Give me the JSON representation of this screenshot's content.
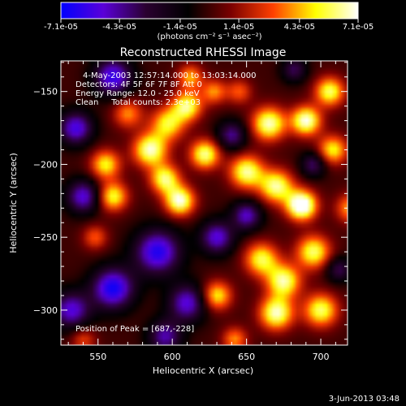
{
  "chart_data": {
    "type": "heatmap",
    "title": "Reconstructed RHESSI Image",
    "xlabel": "Heliocentric X (arcsec)",
    "ylabel": "Heliocentric Y (arcsec)",
    "xlim": [
      525,
      718
    ],
    "ylim": [
      -324,
      -129
    ],
    "x_ticks": [
      550,
      600,
      650,
      700
    ],
    "y_ticks": [
      -150,
      -200,
      -250,
      -300
    ],
    "colorbar": {
      "range": [
        -7.1e-05,
        7.1e-05
      ],
      "tick_values": [
        -7.1e-05,
        -4.3e-05,
        -1.4e-05,
        1.4e-05,
        4.3e-05,
        7.1e-05
      ],
      "tick_labels": [
        "-7.1e-05",
        "-4.3e-05",
        "-1.4e-05",
        "1.4e-05",
        "4.3e-05",
        "7.1e-05"
      ],
      "unit": "(photons cm⁻² s⁻¹ asec⁻²)",
      "colormap": [
        "#0000ff",
        "#5a00d8",
        "#2a0030",
        "#000000",
        "#7a0000",
        "#ff4000",
        "#ffff00",
        "#ffffff"
      ]
    },
    "annotations": [
      "4-May-2003 12:57:14.000 to 13:03:14.000",
      "Detectors: 4F 5F 6F 7F 8F  Att 0",
      "Energy Range: 12.0 - 25.0 keV",
      "Clean     Total counts: 2.3e+03",
      "Position of Peak = [687,-228]"
    ],
    "peak": {
      "x": 687,
      "y": -228
    },
    "date_stamp": "3-Jun-2013 03:48",
    "sources": [
      {
        "x": 555,
        "y": -200,
        "amp": 0.75,
        "s": 7
      },
      {
        "x": 560,
        "y": -222,
        "amp": 0.8,
        "s": 7
      },
      {
        "x": 548,
        "y": -250,
        "amp": 0.45,
        "s": 6
      },
      {
        "x": 570,
        "y": -165,
        "amp": 0.55,
        "s": 7
      },
      {
        "x": 585,
        "y": -190,
        "amp": 0.95,
        "s": 8
      },
      {
        "x": 597,
        "y": -172,
        "amp": 0.75,
        "s": 8
      },
      {
        "x": 595,
        "y": -210,
        "amp": 0.85,
        "s": 7
      },
      {
        "x": 605,
        "y": -225,
        "amp": 1.0,
        "s": 7
      },
      {
        "x": 610,
        "y": -160,
        "amp": 0.85,
        "s": 7
      },
      {
        "x": 612,
        "y": -140,
        "amp": 0.6,
        "s": 6
      },
      {
        "x": 622,
        "y": -193,
        "amp": 0.9,
        "s": 7
      },
      {
        "x": 628,
        "y": -150,
        "amp": 0.55,
        "s": 6
      },
      {
        "x": 630,
        "y": -290,
        "amp": 0.75,
        "s": 7
      },
      {
        "x": 650,
        "y": -205,
        "amp": 0.9,
        "s": 8
      },
      {
        "x": 665,
        "y": -172,
        "amp": 0.95,
        "s": 8
      },
      {
        "x": 670,
        "y": -215,
        "amp": 0.9,
        "s": 8
      },
      {
        "x": 660,
        "y": -265,
        "amp": 0.8,
        "s": 8
      },
      {
        "x": 675,
        "y": -280,
        "amp": 0.9,
        "s": 8
      },
      {
        "x": 670,
        "y": -302,
        "amp": 0.95,
        "s": 8
      },
      {
        "x": 690,
        "y": -170,
        "amp": 1.0,
        "s": 7
      },
      {
        "x": 687,
        "y": -228,
        "amp": 1.25,
        "s": 7
      },
      {
        "x": 695,
        "y": -260,
        "amp": 0.85,
        "s": 8
      },
      {
        "x": 700,
        "y": -300,
        "amp": 0.85,
        "s": 8
      },
      {
        "x": 706,
        "y": -150,
        "amp": 0.85,
        "s": 7
      },
      {
        "x": 708,
        "y": -190,
        "amp": 0.75,
        "s": 7
      },
      {
        "x": 645,
        "y": -150,
        "amp": 0.45,
        "s": 6
      },
      {
        "x": 642,
        "y": -320,
        "amp": 0.55,
        "s": 6
      },
      {
        "x": 540,
        "y": -320,
        "amp": 0.4,
        "s": 6
      },
      {
        "x": 720,
        "y": -230,
        "amp": 0.6,
        "s": 7
      },
      {
        "x": 560,
        "y": -140,
        "amp": -0.85,
        "s": 9
      },
      {
        "x": 535,
        "y": -175,
        "amp": -0.8,
        "s": 8
      },
      {
        "x": 540,
        "y": -222,
        "amp": -0.75,
        "s": 8
      },
      {
        "x": 532,
        "y": -300,
        "amp": -0.75,
        "s": 9
      },
      {
        "x": 560,
        "y": -285,
        "amp": -0.95,
        "s": 10
      },
      {
        "x": 590,
        "y": -260,
        "amp": -0.9,
        "s": 11
      },
      {
        "x": 610,
        "y": -295,
        "amp": -0.75,
        "s": 9
      },
      {
        "x": 595,
        "y": -318,
        "amp": -0.65,
        "s": 8
      },
      {
        "x": 630,
        "y": -250,
        "amp": -0.75,
        "s": 8
      },
      {
        "x": 640,
        "y": -180,
        "amp": -0.6,
        "s": 7
      },
      {
        "x": 650,
        "y": -235,
        "amp": -0.7,
        "s": 7
      },
      {
        "x": 695,
        "y": -200,
        "amp": -0.55,
        "s": 6
      },
      {
        "x": 712,
        "y": -272,
        "amp": -0.5,
        "s": 6
      },
      {
        "x": 682,
        "y": -135,
        "amp": -0.5,
        "s": 6
      }
    ]
  }
}
